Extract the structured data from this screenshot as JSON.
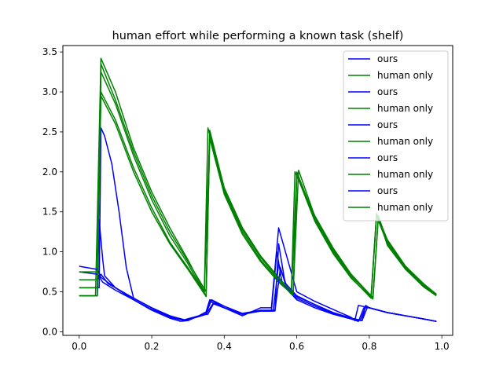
{
  "chart_data": {
    "type": "line",
    "title": "human effort while performing a known task (shelf)",
    "xlabel": "",
    "ylabel": "",
    "xlim": [
      -0.045,
      1.03
    ],
    "ylim": [
      -0.045,
      3.58
    ],
    "x_ticks": [
      0.0,
      0.2,
      0.4,
      0.6,
      0.8,
      1.0
    ],
    "x_tick_labels": [
      "0.0",
      "0.2",
      "0.4",
      "0.6",
      "0.8",
      "1.0"
    ],
    "y_ticks": [
      0.0,
      0.5,
      1.0,
      1.5,
      2.0,
      2.5,
      3.0,
      3.5
    ],
    "y_tick_labels": [
      "0.0",
      "0.5",
      "1.0",
      "1.5",
      "2.0",
      "2.5",
      "3.0",
      "3.5"
    ],
    "grid": false,
    "legend_position": "top-right",
    "colors": {
      "ours": "#0000ff",
      "human_only": "#008000"
    },
    "series": [
      {
        "name": "ours",
        "color": "#0000ff",
        "x": [
          0.0,
          0.05,
          0.055,
          0.065,
          0.07,
          0.1,
          0.15,
          0.2,
          0.25,
          0.28,
          0.3,
          0.33,
          0.35,
          0.36,
          0.37,
          0.4,
          0.45,
          0.5,
          0.53,
          0.55,
          0.6,
          0.65,
          0.7,
          0.75,
          0.76,
          0.77,
          0.8,
          0.85,
          0.9,
          0.95,
          0.985
        ],
        "y": [
          0.45,
          0.45,
          1.4,
          0.9,
          0.7,
          0.55,
          0.4,
          0.27,
          0.17,
          0.13,
          0.14,
          0.2,
          0.25,
          0.4,
          0.38,
          0.3,
          0.2,
          0.3,
          0.3,
          1.3,
          0.5,
          0.38,
          0.28,
          0.18,
          0.14,
          0.33,
          0.3,
          0.24,
          0.2,
          0.16,
          0.13
        ]
      },
      {
        "name": "human only",
        "color": "#008000",
        "x": [
          0.0,
          0.045,
          0.06,
          0.1,
          0.15,
          0.2,
          0.25,
          0.3,
          0.345,
          0.355,
          0.4,
          0.45,
          0.5,
          0.55,
          0.585,
          0.595,
          0.65,
          0.7,
          0.75,
          0.805,
          0.82,
          0.85,
          0.9,
          0.95,
          0.985
        ],
        "y": [
          0.45,
          0.45,
          3.42,
          3.0,
          2.3,
          1.75,
          1.3,
          0.9,
          0.5,
          2.55,
          1.8,
          1.3,
          0.95,
          0.68,
          0.5,
          2.0,
          1.45,
          1.05,
          0.72,
          0.45,
          1.48,
          1.15,
          0.82,
          0.6,
          0.47
        ]
      },
      {
        "name": "ours",
        "color": "#0000ff",
        "x": [
          0.0,
          0.055,
          0.06,
          0.07,
          0.09,
          0.11,
          0.13,
          0.15,
          0.2,
          0.25,
          0.29,
          0.33,
          0.35,
          0.37,
          0.4,
          0.45,
          0.5,
          0.53,
          0.545,
          0.56,
          0.6,
          0.65,
          0.7,
          0.75,
          0.77,
          0.785,
          0.8,
          0.85,
          0.9,
          0.95,
          0.985
        ],
        "y": [
          0.55,
          0.55,
          2.55,
          2.45,
          2.1,
          1.5,
          0.8,
          0.42,
          0.3,
          0.18,
          0.14,
          0.19,
          0.22,
          0.36,
          0.3,
          0.22,
          0.26,
          0.26,
          1.0,
          0.6,
          0.4,
          0.3,
          0.22,
          0.16,
          0.13,
          0.3,
          0.3,
          0.24,
          0.2,
          0.16,
          0.13
        ]
      },
      {
        "name": "human only",
        "color": "#008000",
        "x": [
          0.0,
          0.05,
          0.06,
          0.1,
          0.15,
          0.2,
          0.25,
          0.3,
          0.345,
          0.36,
          0.4,
          0.45,
          0.5,
          0.55,
          0.59,
          0.6,
          0.65,
          0.7,
          0.75,
          0.81,
          0.825,
          0.85,
          0.9,
          0.95,
          0.985
        ],
        "y": [
          0.55,
          0.55,
          3.25,
          2.85,
          2.2,
          1.65,
          1.2,
          0.85,
          0.48,
          2.5,
          1.78,
          1.28,
          0.93,
          0.66,
          0.48,
          2.0,
          1.42,
          1.02,
          0.7,
          0.43,
          1.45,
          1.12,
          0.8,
          0.58,
          0.46
        ]
      },
      {
        "name": "ours",
        "color": "#0000ff",
        "x": [
          0.0,
          0.05,
          0.06,
          0.08,
          0.1,
          0.15,
          0.2,
          0.25,
          0.29,
          0.33,
          0.355,
          0.37,
          0.4,
          0.45,
          0.5,
          0.54,
          0.55,
          0.57,
          0.6,
          0.65,
          0.7,
          0.75,
          0.775,
          0.79,
          0.8,
          0.85,
          0.9,
          0.95,
          0.985
        ],
        "y": [
          0.65,
          0.65,
          0.72,
          0.6,
          0.55,
          0.42,
          0.3,
          0.2,
          0.14,
          0.2,
          0.22,
          0.35,
          0.3,
          0.22,
          0.26,
          0.26,
          1.1,
          0.55,
          0.42,
          0.32,
          0.23,
          0.17,
          0.14,
          0.32,
          0.3,
          0.24,
          0.2,
          0.16,
          0.13
        ]
      },
      {
        "name": "human only",
        "color": "#008000",
        "x": [
          0.0,
          0.05,
          0.06,
          0.1,
          0.15,
          0.2,
          0.25,
          0.3,
          0.35,
          0.36,
          0.4,
          0.45,
          0.5,
          0.55,
          0.585,
          0.6,
          0.65,
          0.7,
          0.75,
          0.805,
          0.82,
          0.85,
          0.9,
          0.95,
          0.985
        ],
        "y": [
          0.65,
          0.65,
          3.0,
          2.65,
          2.05,
          1.55,
          1.12,
          0.8,
          0.45,
          2.45,
          1.75,
          1.25,
          0.9,
          0.64,
          0.47,
          1.98,
          1.4,
          1.0,
          0.68,
          0.42,
          1.45,
          1.1,
          0.79,
          0.57,
          0.46
        ]
      },
      {
        "name": "ours",
        "color": "#0000ff",
        "x": [
          0.0,
          0.05,
          0.065,
          0.1,
          0.15,
          0.2,
          0.25,
          0.29,
          0.33,
          0.35,
          0.36,
          0.4,
          0.45,
          0.5,
          0.535,
          0.55,
          0.57,
          0.6,
          0.65,
          0.7,
          0.75,
          0.78,
          0.795,
          0.8,
          0.85,
          0.9,
          0.95,
          0.985
        ],
        "y": [
          0.75,
          0.72,
          0.62,
          0.52,
          0.4,
          0.28,
          0.19,
          0.14,
          0.19,
          0.22,
          0.38,
          0.3,
          0.22,
          0.26,
          0.26,
          0.85,
          0.6,
          0.45,
          0.34,
          0.24,
          0.17,
          0.14,
          0.31,
          0.3,
          0.24,
          0.2,
          0.16,
          0.13
        ]
      },
      {
        "name": "human only",
        "color": "#008000",
        "x": [
          0.0,
          0.05,
          0.06,
          0.1,
          0.15,
          0.2,
          0.25,
          0.3,
          0.35,
          0.36,
          0.4,
          0.45,
          0.5,
          0.55,
          0.59,
          0.6,
          0.65,
          0.7,
          0.75,
          0.81,
          0.825,
          0.85,
          0.9,
          0.95,
          0.985
        ],
        "y": [
          0.75,
          0.75,
          2.95,
          2.6,
          2.0,
          1.5,
          1.1,
          0.78,
          0.44,
          2.42,
          1.72,
          1.22,
          0.88,
          0.62,
          0.46,
          1.96,
          1.38,
          0.98,
          0.67,
          0.41,
          1.43,
          1.08,
          0.78,
          0.56,
          0.45
        ]
      },
      {
        "name": "ours",
        "color": "#0000ff",
        "x": [
          0.0,
          0.05,
          0.06,
          0.1,
          0.15,
          0.2,
          0.25,
          0.29,
          0.33,
          0.35,
          0.365,
          0.4,
          0.45,
          0.5,
          0.54,
          0.555,
          0.57,
          0.6,
          0.65,
          0.7,
          0.75,
          0.78,
          0.79,
          0.8,
          0.85,
          0.9,
          0.95,
          0.985
        ],
        "y": [
          0.82,
          0.78,
          0.68,
          0.55,
          0.42,
          0.3,
          0.2,
          0.15,
          0.2,
          0.23,
          0.4,
          0.32,
          0.23,
          0.27,
          0.27,
          0.8,
          0.58,
          0.44,
          0.34,
          0.24,
          0.17,
          0.14,
          0.33,
          0.3,
          0.24,
          0.2,
          0.16,
          0.13
        ]
      },
      {
        "name": "human only",
        "color": "#008000",
        "x": [
          0.0,
          0.05,
          0.06,
          0.1,
          0.15,
          0.2,
          0.25,
          0.3,
          0.35,
          0.36,
          0.4,
          0.45,
          0.5,
          0.55,
          0.59,
          0.605,
          0.65,
          0.7,
          0.75,
          0.805,
          0.82,
          0.85,
          0.9,
          0.95,
          0.985
        ],
        "y": [
          0.45,
          0.45,
          3.35,
          2.9,
          2.25,
          1.7,
          1.25,
          0.88,
          0.5,
          2.52,
          1.8,
          1.3,
          0.94,
          0.67,
          0.49,
          2.02,
          1.44,
          1.03,
          0.71,
          0.44,
          1.47,
          1.14,
          0.81,
          0.59,
          0.47
        ]
      }
    ]
  }
}
